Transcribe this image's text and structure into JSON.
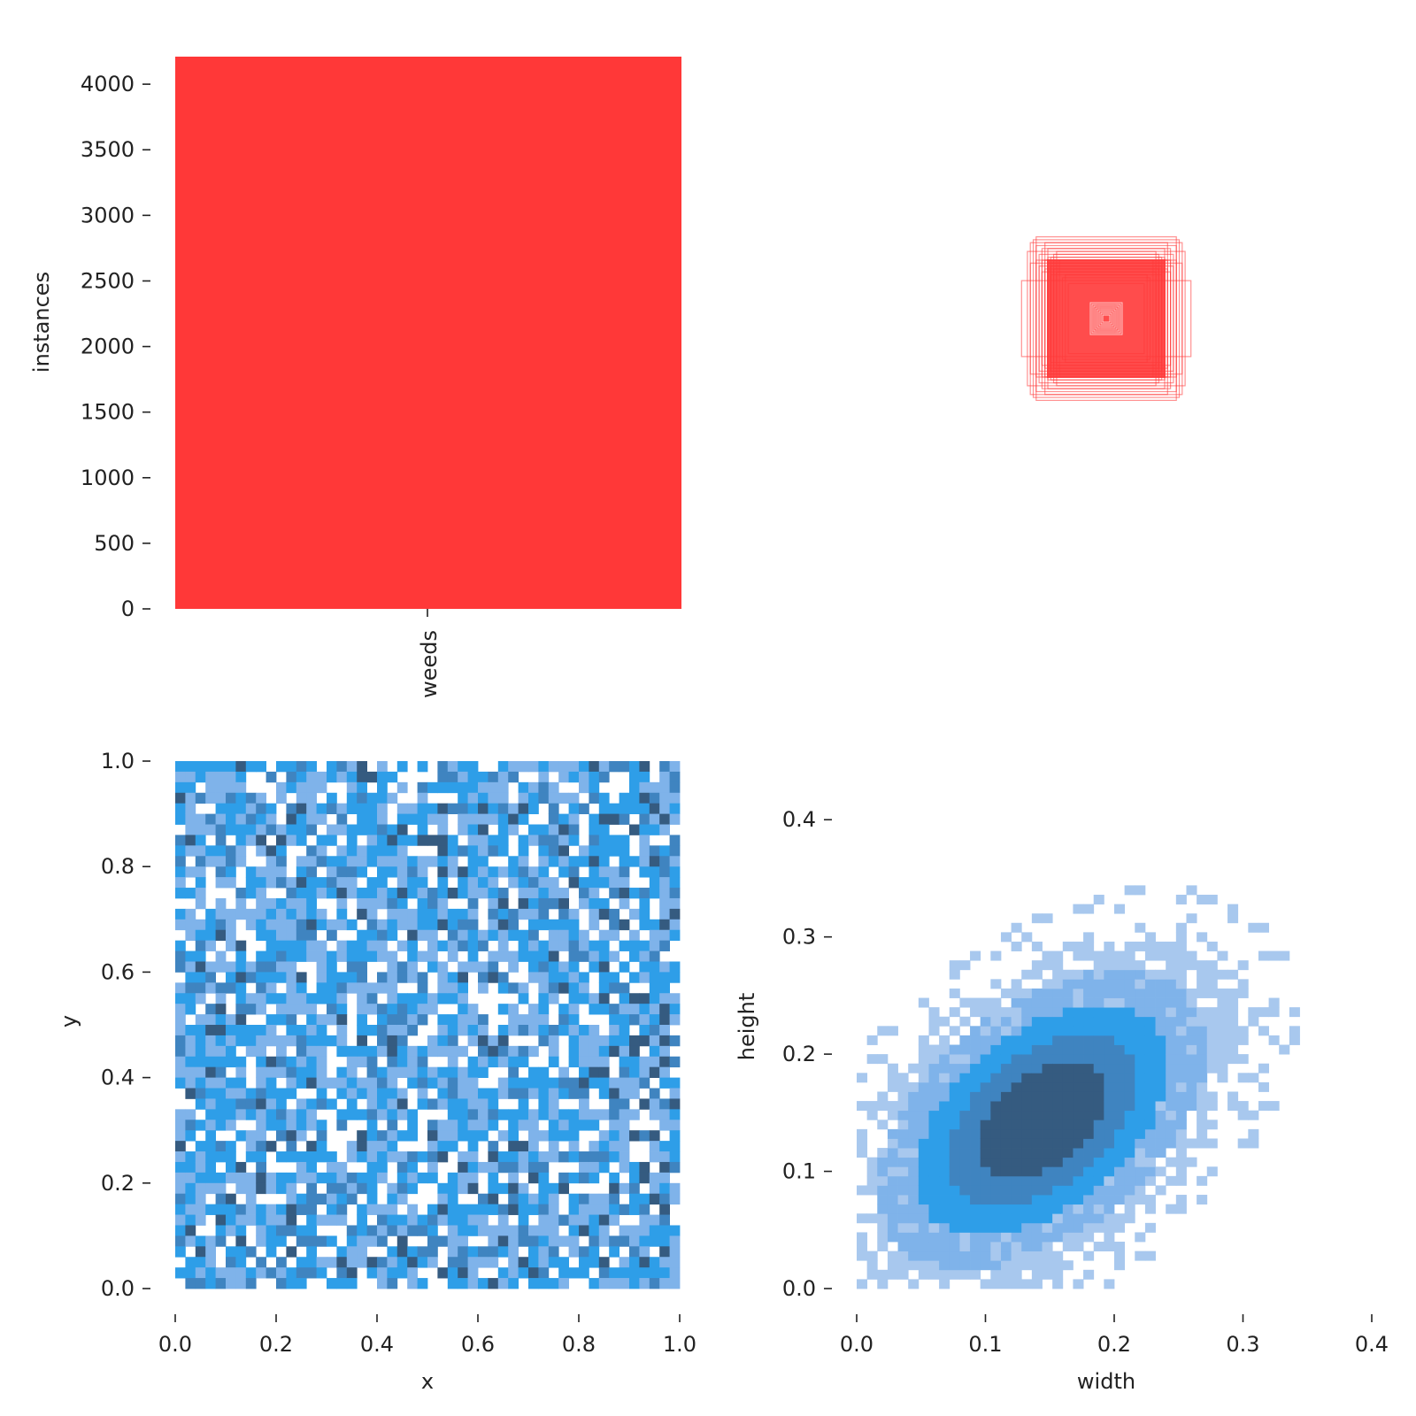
{
  "chart_data": [
    {
      "panel": "class-counts",
      "type": "bar",
      "categories": [
        "weeds"
      ],
      "values": [
        4210
      ],
      "ylabel": "instances",
      "ylim": [
        0,
        4210
      ],
      "yticks": [
        "0",
        "500",
        "1000",
        "1500",
        "2000",
        "2500",
        "3000",
        "3500",
        "4000"
      ],
      "bar_color": "#ff3838",
      "grid": false
    },
    {
      "panel": "box-shapes",
      "type": "other",
      "description_visible": "overlaid bounding-box outlines centered at a common point",
      "color": "#ff3838",
      "boxes_wh": [
        [
          0.25,
          0.27
        ],
        [
          0.26,
          0.26
        ],
        [
          0.24,
          0.28
        ],
        [
          0.22,
          0.24
        ],
        [
          0.27,
          0.23
        ],
        [
          0.29,
          0.13
        ],
        [
          0.21,
          0.26
        ],
        [
          0.23,
          0.22
        ],
        [
          0.2,
          0.21
        ],
        [
          0.24,
          0.2
        ],
        [
          0.22,
          0.2
        ],
        [
          0.21,
          0.2
        ],
        [
          0.2,
          0.19
        ],
        [
          0.19,
          0.18
        ],
        [
          0.21,
          0.17
        ],
        [
          0.18,
          0.17
        ],
        [
          0.17,
          0.16
        ],
        [
          0.19,
          0.15
        ],
        [
          0.16,
          0.2
        ],
        [
          0.22,
          0.16
        ],
        [
          0.26,
          0.19
        ],
        [
          0.15,
          0.14
        ],
        [
          0.14,
          0.15
        ],
        [
          0.13,
          0.12
        ],
        [
          0.18,
          0.22
        ],
        [
          0.24,
          0.25
        ],
        [
          0.2,
          0.24
        ],
        [
          0.23,
          0.18
        ],
        [
          0.17,
          0.23
        ],
        [
          0.19,
          0.21
        ],
        [
          0.03,
          0.05
        ],
        [
          0.04,
          0.04
        ],
        [
          0.035,
          0.045
        ],
        [
          0.025,
          0.03
        ],
        [
          0.045,
          0.035
        ],
        [
          0.02,
          0.04
        ]
      ]
    },
    {
      "panel": "xy-histogram",
      "type": "heatmap",
      "xlabel": "x",
      "ylabel": "y",
      "xlim": [
        0,
        1
      ],
      "ylim": [
        0,
        1
      ],
      "xticks": [
        "0.0",
        "0.2",
        "0.4",
        "0.6",
        "0.8",
        "1.0"
      ],
      "yticks": [
        "0.0",
        "0.2",
        "0.4",
        "0.6",
        "0.8",
        "1.0"
      ],
      "bins": 50,
      "colors": [
        "#ffffff",
        "#7fb3ea",
        "#2e9ee8",
        "#3f84c0",
        "#355b80"
      ]
    },
    {
      "panel": "wh-histogram",
      "type": "heatmap",
      "xlabel": "width",
      "ylabel": "height",
      "xlim": [
        0,
        0.4
      ],
      "ylim": [
        0,
        0.45
      ],
      "xticks": [
        "0.0",
        "0.1",
        "0.2",
        "0.3",
        "0.4"
      ],
      "yticks": [
        "0.0",
        "0.1",
        "0.2",
        "0.3",
        "0.4"
      ],
      "bin_size": 0.008,
      "peak": [
        0.14,
        0.14
      ],
      "colors": [
        "#a8c8ee",
        "#7fb3ea",
        "#2e9ee8",
        "#3f84c0",
        "#355b80"
      ]
    }
  ]
}
